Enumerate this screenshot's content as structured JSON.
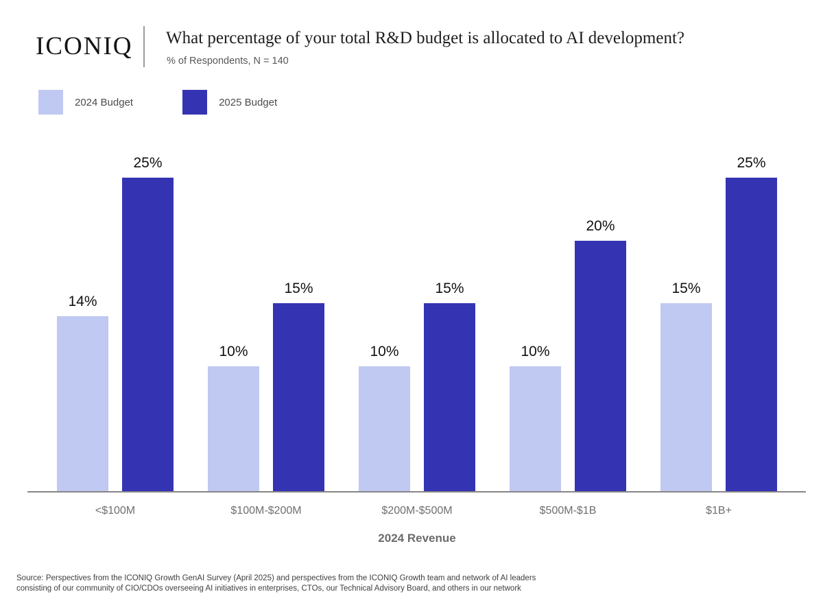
{
  "header": {
    "logo": "ICONIQ",
    "title": "What percentage of your total R&D budget is allocated to AI development?",
    "subtitle": "% of Respondents, N = 140"
  },
  "chart_data": {
    "type": "bar",
    "title": "What percentage of your total R&D budget is allocated to AI development?",
    "subtitle": "% of Respondents, N = 140",
    "categories": [
      "<$100M",
      "$100M-$200M",
      "$200M-$500M",
      "$500M-$1B",
      "$1B+"
    ],
    "series": [
      {
        "name": "2024 Budget",
        "color": "#c0c9f1",
        "values": [
          14,
          10,
          10,
          10,
          15
        ]
      },
      {
        "name": "2025 Budget",
        "color": "#3434b2",
        "values": [
          25,
          15,
          15,
          20,
          25
        ]
      }
    ],
    "value_suffix": "%",
    "xlabel": "2024 Revenue",
    "ylabel": "% of Respondents",
    "ylim": [
      0,
      27
    ],
    "grid": false,
    "data_labels": true,
    "legend_position": "top-left",
    "axis_color": "#868686"
  },
  "source": {
    "line1": "Source: Perspectives from the ICONIQ Growth GenAI Survey (April 2025) and perspectives from the ICONIQ Growth team and network of AI leaders",
    "line2": "consisting of our community of CIO/CDOs overseeing AI initiatives in enterprises, CTOs, our Technical Advisory Board, and others in our network"
  }
}
